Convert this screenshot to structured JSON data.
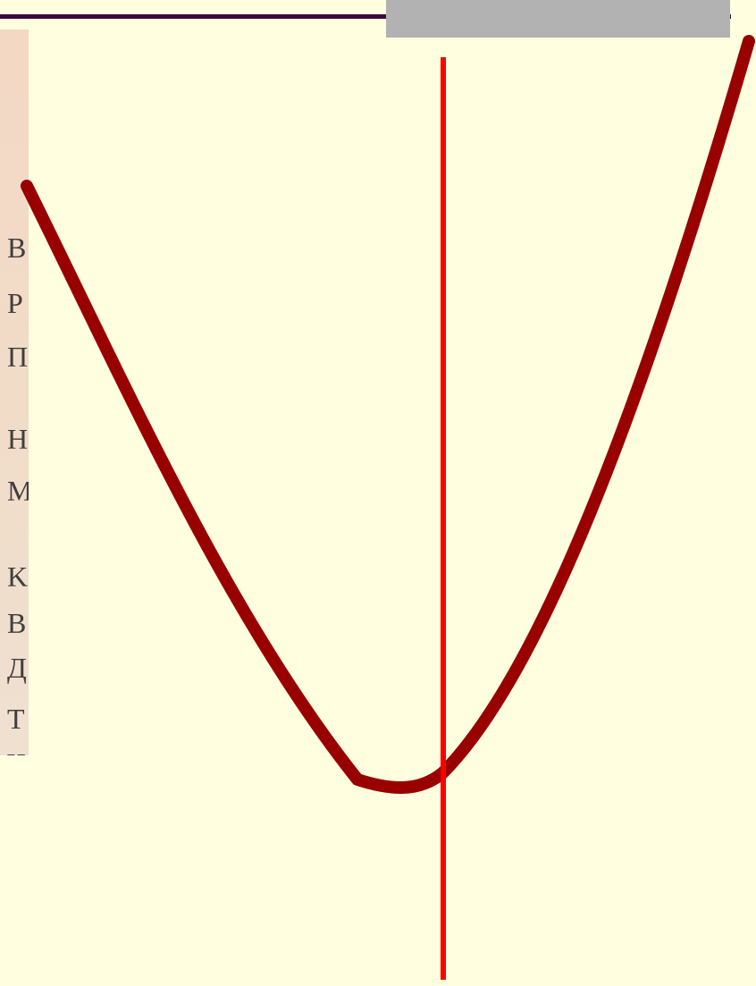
{
  "colors": {
    "background": "#ffffe0",
    "top_rule": "#3b0a3a",
    "top_bar": "#b2b2b2",
    "curve": "#990000",
    "axis": "#ff0000"
  },
  "scan_letters": [
    "B",
    "P",
    "Π",
    "Η",
    "Μ",
    "Κ",
    "Β",
    "Д",
    "Т",
    "Ч"
  ]
}
